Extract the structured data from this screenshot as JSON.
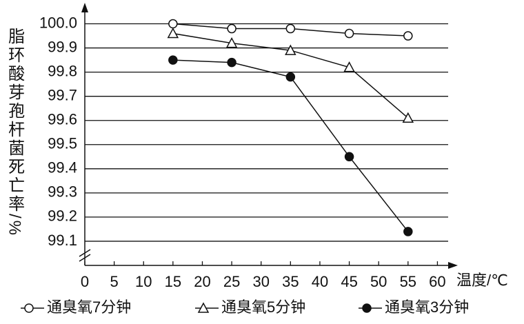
{
  "chart_data": {
    "type": "line",
    "y_label": "脂环酸芽孢杆菌死亡率/%",
    "x_label": "温度/℃",
    "x": [
      15,
      25,
      35,
      45,
      55
    ],
    "series": [
      {
        "name": "通臭氧7分钟",
        "color": "#111111",
        "marker": "circle-open",
        "values": [
          100.0,
          99.98,
          99.98,
          99.96,
          99.95
        ]
      },
      {
        "name": "通臭氧5分钟",
        "color": "#111111",
        "marker": "triangle-open",
        "values": [
          99.96,
          99.92,
          99.89,
          99.82,
          99.61
        ]
      },
      {
        "name": "通臭氧3分钟",
        "color": "#111111",
        "marker": "circle-filled",
        "values": [
          99.85,
          99.84,
          99.78,
          99.45,
          99.14
        ]
      }
    ],
    "xlim": [
      0,
      63
    ],
    "xticks": [
      0,
      5,
      10,
      15,
      20,
      25,
      30,
      35,
      40,
      45,
      50,
      55,
      60
    ],
    "ylim": [
      99.0,
      100.07
    ],
    "yticks": [
      {
        "value": 100.0,
        "label": "100.0"
      },
      99.9,
      99.8,
      99.7,
      99.6,
      99.5,
      99.4,
      99.3,
      99.2,
      99.1
    ],
    "grid": true,
    "legend": "bottom"
  }
}
